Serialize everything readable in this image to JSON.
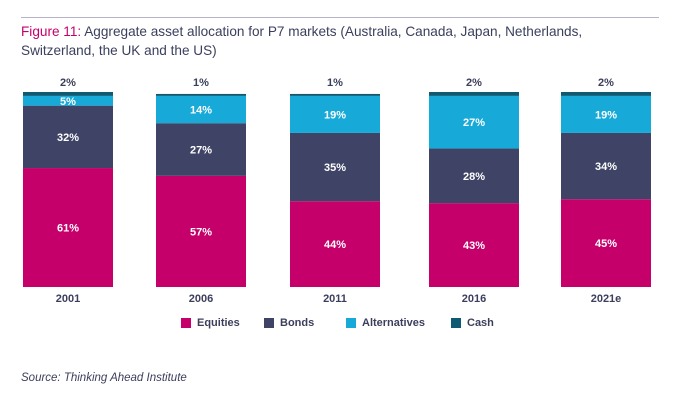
{
  "figure": {
    "label": "Figure 11:",
    "title": "Aggregate asset allocation for P7 markets (Australia, Canada, Japan, Netherlands, Switzerland, the UK and the US)"
  },
  "colors": {
    "equities": "#c6006b",
    "bonds": "#3f4466",
    "alternatives": "#17aad9",
    "cash": "#0e5a73",
    "text": "#3b3f5c"
  },
  "chart_data": {
    "type": "bar",
    "stacked": true,
    "categories": [
      "2001",
      "2006",
      "2011",
      "2016",
      "2021e"
    ],
    "series": [
      {
        "name": "Equities",
        "values": [
          61,
          57,
          44,
          43,
          45
        ],
        "labels": [
          "61%",
          "57%",
          "44%",
          "43%",
          "45%"
        ]
      },
      {
        "name": "Bonds",
        "values": [
          32,
          27,
          35,
          28,
          34
        ],
        "labels": [
          "32%",
          "27%",
          "35%",
          "28%",
          "34%"
        ]
      },
      {
        "name": "Alternatives",
        "values": [
          5,
          14,
          19,
          27,
          19
        ],
        "labels": [
          "5%",
          "14%",
          "19%",
          "27%",
          "19%"
        ]
      },
      {
        "name": "Cash",
        "values": [
          2,
          1,
          1,
          2,
          2
        ],
        "labels": [
          "2%",
          "1%",
          "1%",
          "2%",
          "2%"
        ]
      }
    ],
    "ylim": [
      0,
      100
    ],
    "xlabel": "",
    "ylabel": "",
    "grid": false,
    "legend_position": "bottom"
  },
  "legend": {
    "equities": "Equities",
    "bonds": "Bonds",
    "alternatives": "Alternatives",
    "cash": "Cash"
  },
  "source": "Source: Thinking Ahead Institute"
}
